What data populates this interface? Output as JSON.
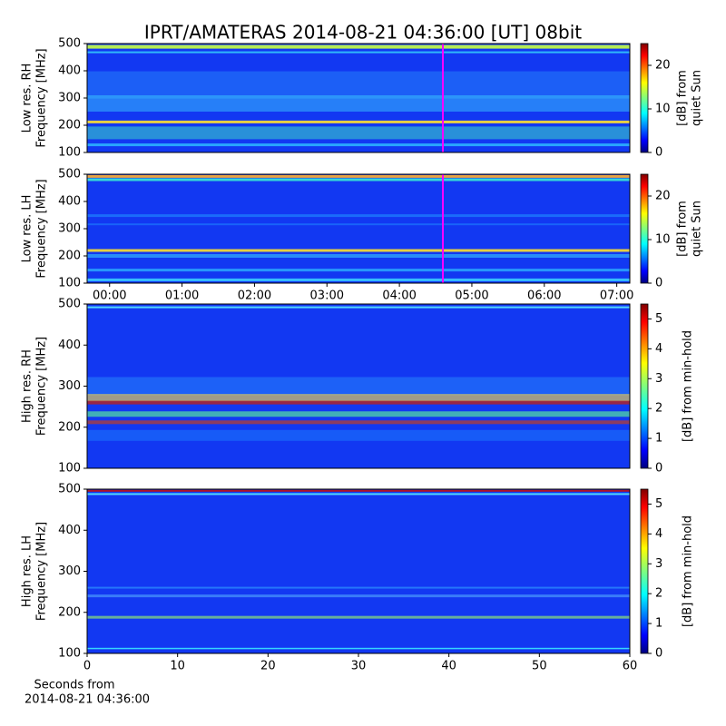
{
  "title": "IPRT/AMATERAS 2014-08-21 04:36:00 [UT]   08bit",
  "colormap": "jet",
  "chart_data": [
    {
      "type": "heatmap",
      "ylabel": [
        "Low res. RH",
        "Frequency [MHz]"
      ],
      "ylim": [
        100,
        500
      ],
      "yticks": [
        100,
        200,
        300,
        400,
        500
      ],
      "xlim": [
        -0.31,
        7.18
      ],
      "marker": 4.6,
      "marker_color": "#ff00ff",
      "clabel": [
        "[dB] from",
        "quiet Sun"
      ],
      "clim": [
        0,
        25
      ],
      "cticks": [
        0,
        10,
        20
      ]
    },
    {
      "type": "heatmap",
      "ylabel": [
        "Low res. LH",
        "Frequency [MHz]"
      ],
      "ylim": [
        100,
        500
      ],
      "yticks": [
        100,
        200,
        300,
        400,
        500
      ],
      "xlim": [
        -0.31,
        7.18
      ],
      "marker": 4.6,
      "marker_color": "#ff00ff",
      "xticks": [
        {
          "value": 0,
          "label": "00:00"
        },
        {
          "value": 1,
          "label": "01:00"
        },
        {
          "value": 2,
          "label": "02:00"
        },
        {
          "value": 3,
          "label": "03:00"
        },
        {
          "value": 4,
          "label": "04:00"
        },
        {
          "value": 5,
          "label": "05:00"
        },
        {
          "value": 6,
          "label": "06:00"
        },
        {
          "value": 7,
          "label": "07:00"
        }
      ],
      "clabel": [
        "[dB] from",
        "quiet Sun"
      ],
      "clim": [
        0,
        25
      ],
      "cticks": [
        0,
        10,
        20
      ]
    },
    {
      "type": "heatmap",
      "ylabel": [
        "High res. RH",
        "Frequency [MHz]"
      ],
      "ylim": [
        100,
        500
      ],
      "yticks": [
        100,
        200,
        300,
        400,
        500
      ],
      "xlim": [
        0,
        60
      ],
      "clabel": [
        "[dB] from min-hold"
      ],
      "clim": [
        0,
        5.5
      ],
      "cticks": [
        0,
        1,
        2,
        3,
        4,
        5
      ]
    },
    {
      "type": "heatmap",
      "ylabel": [
        "High res. LH",
        "Frequency [MHz]"
      ],
      "ylim": [
        100,
        500
      ],
      "yticks": [
        100,
        200,
        300,
        400,
        500
      ],
      "xlim": [
        0,
        60
      ],
      "xticks": [
        0,
        10,
        20,
        30,
        40,
        50,
        60
      ],
      "xlabel": [
        "Seconds from",
        "2014-08-21 04:36:00"
      ],
      "clabel": [
        "[dB] from min-hold"
      ],
      "clim": [
        0,
        5.5
      ],
      "cticks": [
        0,
        1,
        2,
        3,
        4,
        5
      ]
    }
  ]
}
